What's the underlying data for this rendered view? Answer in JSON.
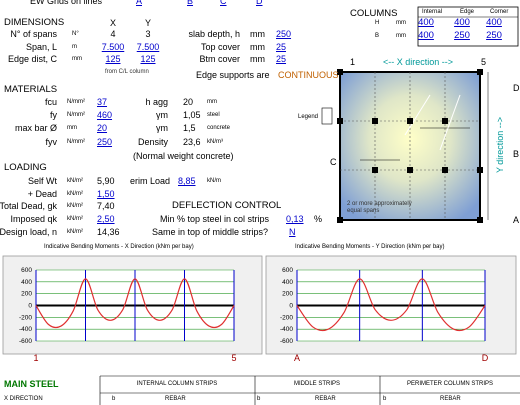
{
  "header": {
    "label": "EW Grids on lines",
    "grids": [
      "A",
      "B",
      "C",
      "D"
    ]
  },
  "columns": {
    "title": "COLUMNS",
    "headers": [
      "Internal",
      "Edge",
      "Corner"
    ],
    "rows": [
      {
        "label": "H",
        "unit": "mm",
        "values": [
          "400",
          "400",
          "400"
        ]
      },
      {
        "label": "B",
        "unit": "mm",
        "values": [
          "400",
          "250",
          "250"
        ]
      }
    ]
  },
  "dimensions": {
    "title": "DIMENSIONS",
    "col_x": "X",
    "col_y": "Y",
    "rows": [
      {
        "label": "N° of spans",
        "unit": "N°",
        "x": "4",
        "y": "3"
      },
      {
        "label": "Span, L",
        "unit": "m",
        "x": "7.500",
        "y": "7.500"
      },
      {
        "label": "Edge dist, C",
        "unit": "mm",
        "x": "125",
        "y": "125"
      }
    ],
    "note": "from C/L column"
  },
  "slab": {
    "rows": [
      {
        "label": "slab depth, h",
        "unit": "mm",
        "value": "250"
      },
      {
        "label": "Top cover",
        "unit": "mm",
        "value": "25"
      },
      {
        "label": "Btm cover",
        "unit": "mm",
        "value": "25"
      }
    ],
    "edge_label": "Edge supports are",
    "edge_value": "CONTINUOUS"
  },
  "diagram": {
    "left": "1",
    "direction_x": "<-- X direction -->",
    "right": "5",
    "top_grid": "D",
    "mid_grid": "B",
    "bottom_grid": "A",
    "side": "C",
    "direction_y": "Y direction -->",
    "legend": "Legend",
    "note": "2 or more approximately equal spans"
  },
  "materials": {
    "title": "MATERIALS",
    "rows": [
      {
        "label": "fcu",
        "unit": "N/mm²",
        "value": "37"
      },
      {
        "label": "fy",
        "unit": "N/mm²",
        "value": "460"
      },
      {
        "label": "max bar Ø",
        "unit": "mm",
        "value": "20"
      },
      {
        "label": "fyv",
        "unit": "N/mm²",
        "value": "250"
      }
    ],
    "right": [
      {
        "label": "h agg",
        "value": "20",
        "unit": "mm"
      },
      {
        "label": "γm",
        "value": "1,05",
        "unit": "steel"
      },
      {
        "label": "γm",
        "value": "1,5",
        "unit": "concrete"
      },
      {
        "label": "Density",
        "value": "23,6",
        "unit": "kN/m³"
      }
    ],
    "note": "(Normal weight concrete)"
  },
  "loading": {
    "title": "LOADING",
    "rows": [
      {
        "label": "Self Wt",
        "unit": "kN/m²",
        "value": "5,90"
      },
      {
        "label": "+ Dead",
        "unit": "kN/m²",
        "value": "1,50"
      },
      {
        "label": "Total Dead, gk",
        "unit": "kN/m²",
        "value": "7,40"
      },
      {
        "label": "Imposed qk",
        "unit": "kN/m²",
        "value": "2,50"
      },
      {
        "label": "Design load, n",
        "unit": "kN/m²",
        "value": "14,36"
      }
    ],
    "perim": {
      "label": "erim Load",
      "value": "8,85",
      "unit": "kN/m"
    }
  },
  "deflection": {
    "title": "DEFLECTION CONTROL",
    "rows": [
      {
        "label": "Min % top steel in col strips",
        "value": "0,13",
        "unit": "%"
      },
      {
        "label": "Same in top of middle strips?",
        "value": "N"
      }
    ]
  },
  "charts": [
    {
      "type": "line",
      "title": "Indicative Bending Moments - X Direction (kNm per bay)",
      "color": "#e03030",
      "x": [
        0,
        0.25,
        0.5,
        0.75,
        1,
        1.25,
        1.5,
        1.75,
        2,
        2.25,
        2.5,
        2.75,
        3,
        3.25,
        3.5,
        3.75,
        4
      ],
      "values": [
        0,
        -319,
        -350,
        -94,
        450,
        -75,
        -250,
        -75,
        450,
        -75,
        -250,
        -75,
        450,
        -94,
        -350,
        -319,
        0
      ],
      "xlim": [
        0,
        4
      ],
      "ylim": [
        -600,
        600
      ],
      "yticks": [
        600,
        400,
        200,
        0,
        -200,
        -400,
        -600
      ],
      "end_labels": [
        "1",
        "5"
      ]
    },
    {
      "type": "line",
      "title": "Indicative Bending Moments - Y Direction (kNm per bay)",
      "color": "#e03030",
      "x": [
        0,
        0.25,
        0.5,
        0.75,
        1,
        1.25,
        1.5,
        1.75,
        2,
        2.25,
        2.5,
        2.75,
        3
      ],
      "values": [
        0,
        -360,
        -400,
        -120,
        450,
        -75,
        -250,
        -75,
        450,
        -120,
        -400,
        -360,
        0
      ],
      "xlim": [
        0,
        3
      ],
      "ylim": [
        -600,
        600
      ],
      "yticks": [
        600,
        400,
        200,
        0,
        -200,
        -400,
        -600
      ],
      "end_labels": [
        "A",
        "D"
      ]
    }
  ],
  "main_steel": {
    "title": "MAIN STEEL",
    "headers": [
      "INTERNAL COLUMN STRIPS",
      "MIDDLE STRIPS",
      "PERIMETER COLUMN STRIPS"
    ],
    "row": {
      "label": "X DIRECTION",
      "cells": [
        "b",
        "REBAR",
        "b",
        "REBAR",
        "b",
        "REBAR"
      ]
    }
  }
}
